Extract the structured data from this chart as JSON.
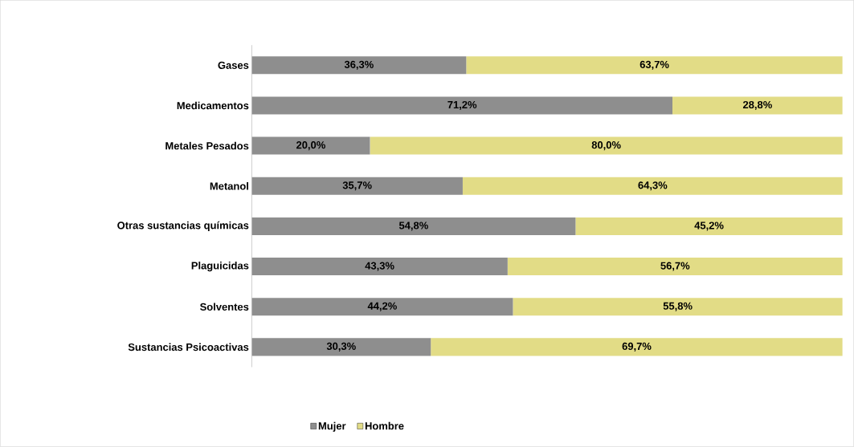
{
  "chart_data": {
    "type": "bar",
    "orientation": "horizontal",
    "stacked": true,
    "categories": [
      "Gases",
      "Medicamentos",
      "Metales Pesados",
      "Metanol",
      "Otras sustancias químicas",
      "Plaguicidas",
      "Solventes",
      "Sustancias Psicoactivas"
    ],
    "series": [
      {
        "name": "Mujer",
        "color": "#8e8e8e",
        "values": [
          36.3,
          71.2,
          20.0,
          35.7,
          54.8,
          43.3,
          44.2,
          30.3
        ],
        "value_labels": [
          "36,3%",
          "71,2%",
          "20,0%",
          "35,7%",
          "54,8%",
          "43,3%",
          "44,2%",
          "30,3%"
        ]
      },
      {
        "name": "Hombre",
        "color": "#e2dc86",
        "values": [
          63.7,
          28.8,
          80.0,
          64.3,
          45.2,
          56.7,
          55.8,
          69.7
        ],
        "value_labels": [
          "63,7%",
          "28,8%",
          "80,0%",
          "64,3%",
          "45,2%",
          "56,7%",
          "55,8%",
          "69,7%"
        ]
      }
    ],
    "xlim": [
      0,
      100
    ],
    "tick_labels": "y",
    "legend": "bottom"
  }
}
